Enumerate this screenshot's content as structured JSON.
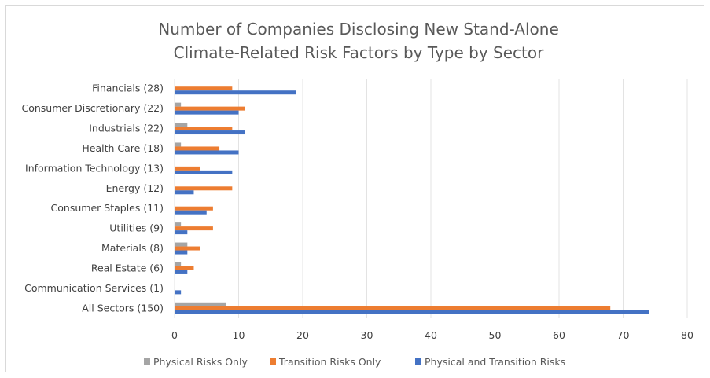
{
  "chart_data": {
    "type": "bar",
    "orientation": "horizontal",
    "title_lines": [
      "Number of Companies Disclosing New Stand-Alone",
      "Climate-Related Risk Factors by Type by Sector"
    ],
    "categories": [
      "Financials (28)",
      "Consumer Discretionary (22)",
      "Industrials (22)",
      "Health Care (18)",
      "Information Technology (13)",
      "Energy (12)",
      "Consumer Staples (11)",
      "Utilities (9)",
      "Materials (8)",
      "Real Estate (6)",
      "Communication Services (1)",
      "All Sectors (150)"
    ],
    "series": [
      {
        "name": "Physical Risks Only",
        "color": "#a5a5a5",
        "values": [
          0,
          1,
          2,
          1,
          0,
          0,
          0,
          1,
          2,
          1,
          0,
          8
        ]
      },
      {
        "name": "Transition Risks Only",
        "color": "#ed7d31",
        "values": [
          9,
          11,
          9,
          7,
          4,
          9,
          6,
          6,
          4,
          3,
          0,
          68
        ]
      },
      {
        "name": "Physical and Transition Risks",
        "color": "#4472c4",
        "values": [
          19,
          10,
          11,
          10,
          9,
          3,
          5,
          2,
          2,
          2,
          1,
          74
        ]
      }
    ],
    "xlim": [
      0,
      80
    ],
    "xticks": [
      "0",
      "10",
      "20",
      "30",
      "40",
      "50",
      "60",
      "70",
      "80"
    ],
    "grid": true,
    "legend_position": "bottom"
  }
}
